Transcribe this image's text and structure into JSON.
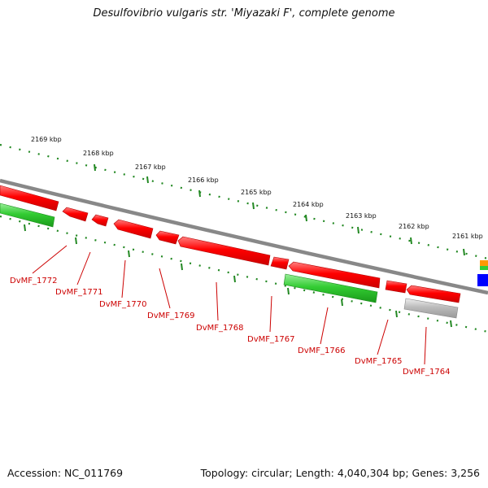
{
  "title": "Desulfovibrio vulgaris str. 'Miyazaki F', complete genome",
  "footer": {
    "accession": "Accession: NC_011769",
    "summary": "Topology: circular; Length: 4,040,304 bp; Genes: 3,256"
  },
  "scale_ticks": [
    "2169 kbp",
    "2168 kbp",
    "2167 kbp",
    "2166 kbp",
    "2165 kbp",
    "2164 kbp",
    "2163 kbp",
    "2162 kbp",
    "2161 kbp"
  ],
  "gene_labels": [
    "DvMF_1772",
    "DvMF_1771",
    "DvMF_1770",
    "DvMF_1769",
    "DvMF_1768",
    "DvMF_1767",
    "DvMF_1766",
    "DvMF_1765",
    "DvMF_1764"
  ],
  "colors": {
    "cds": "#ff0000",
    "green_feature": "#33cc33",
    "grey_feature": "#bbbbbb",
    "backbone": "#888888",
    "tick": "#228822",
    "gene_label": "#cc0000",
    "blue_feature": "#0000ff",
    "orange_feature": "#ff9900"
  }
}
